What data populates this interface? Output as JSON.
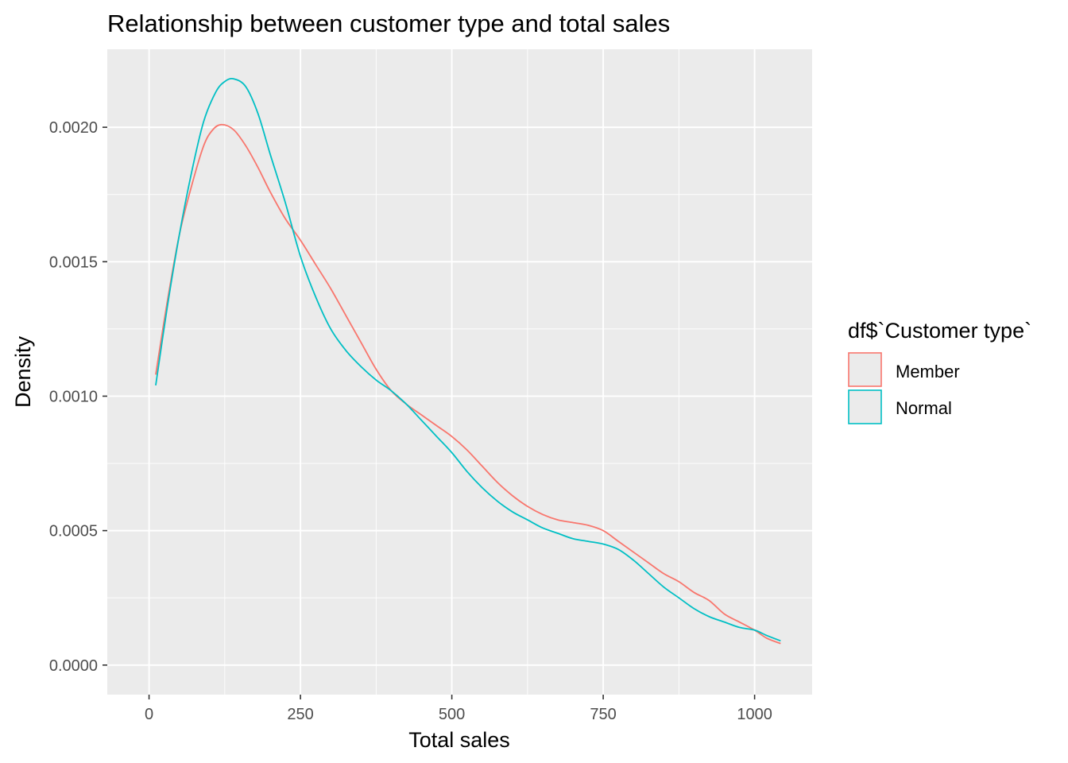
{
  "chart_data": {
    "type": "line",
    "title": "Relationship between customer type and total sales",
    "xlabel": "Total sales",
    "ylabel": "Density",
    "xlim": [
      -69,
      1095
    ],
    "ylim": [
      -0.00011,
      0.00229
    ],
    "x_ticks": [
      0,
      250,
      500,
      750,
      1000
    ],
    "x_tick_labels": [
      "0",
      "250",
      "500",
      "750",
      "1000"
    ],
    "y_ticks": [
      0.0,
      0.0005,
      0.001,
      0.0015,
      0.002
    ],
    "y_tick_labels": [
      "0.0000",
      "0.0005",
      "0.0010",
      "0.0015",
      "0.0020"
    ],
    "grid": true,
    "panel_background": "#EBEBEB",
    "legend": {
      "title": "df$`Customer type`",
      "placement": "right"
    },
    "series": [
      {
        "name": "Member",
        "color": "#F8766D",
        "x": [
          11,
          30,
          50,
          70,
          90,
          105,
          120,
          140,
          160,
          180,
          200,
          225,
          250,
          275,
          300,
          325,
          350,
          375,
          400,
          425,
          450,
          475,
          500,
          525,
          550,
          575,
          600,
          625,
          650,
          675,
          700,
          725,
          750,
          775,
          800,
          825,
          850,
          875,
          900,
          925,
          950,
          975,
          1000,
          1020,
          1043
        ],
        "y": [
          0.00108,
          0.00135,
          0.0016,
          0.00178,
          0.00193,
          0.00199,
          0.00201,
          0.00199,
          0.00193,
          0.00185,
          0.00176,
          0.00166,
          0.00158,
          0.00149,
          0.0014,
          0.0013,
          0.0012,
          0.0011,
          0.00102,
          0.00097,
          0.00093,
          0.00089,
          0.00085,
          0.0008,
          0.00074,
          0.00068,
          0.00063,
          0.00059,
          0.00056,
          0.00054,
          0.00053,
          0.00052,
          0.0005,
          0.00046,
          0.00042,
          0.00038,
          0.00034,
          0.00031,
          0.00027,
          0.00024,
          0.00019,
          0.00016,
          0.00013,
          0.0001,
          8e-05
        ]
      },
      {
        "name": "Normal",
        "color": "#00BFC4",
        "x": [
          11,
          30,
          50,
          70,
          90,
          110,
          125,
          140,
          160,
          180,
          200,
          225,
          250,
          275,
          300,
          325,
          350,
          375,
          400,
          425,
          450,
          475,
          500,
          525,
          550,
          575,
          600,
          625,
          650,
          675,
          700,
          725,
          750,
          775,
          800,
          825,
          850,
          875,
          900,
          925,
          950,
          975,
          1000,
          1020,
          1043
        ],
        "y": [
          0.00104,
          0.00133,
          0.0016,
          0.00183,
          0.00202,
          0.00213,
          0.00217,
          0.00218,
          0.00215,
          0.00205,
          0.0019,
          0.00172,
          0.00152,
          0.00137,
          0.00125,
          0.00117,
          0.00111,
          0.00106,
          0.00102,
          0.00097,
          0.00091,
          0.00085,
          0.00079,
          0.00072,
          0.00066,
          0.00061,
          0.00057,
          0.00054,
          0.00051,
          0.00049,
          0.00047,
          0.00046,
          0.00045,
          0.00043,
          0.00039,
          0.00034,
          0.00029,
          0.00025,
          0.00021,
          0.00018,
          0.00016,
          0.00014,
          0.00013,
          0.00011,
          9e-05
        ]
      }
    ]
  }
}
